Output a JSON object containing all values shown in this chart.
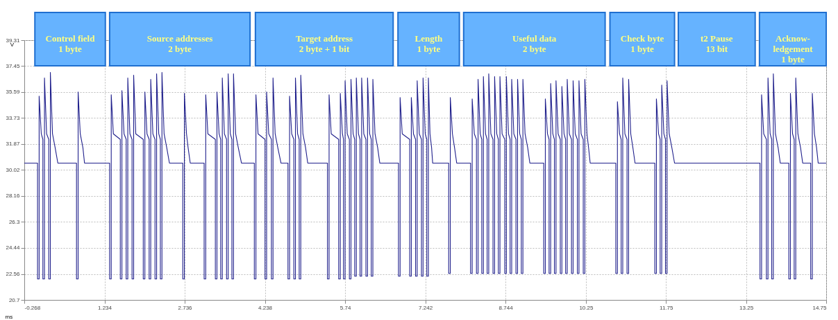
{
  "chart_data": {
    "type": "line",
    "xlabel": "ms",
    "ylabel": "V",
    "xlim": [
      -0.268,
      14.75
    ],
    "xticks": [
      -0.268,
      1.234,
      2.736,
      4.238,
      5.74,
      7.242,
      8.744,
      10.25,
      11.75,
      13.25,
      14.75
    ],
    "ylim": [
      20.7,
      39.31
    ],
    "yticks": [
      20.7,
      22.56,
      24.44,
      26.3,
      28.16,
      30.02,
      31.87,
      33.73,
      35.59,
      37.45,
      39.31
    ],
    "grid": true,
    "line_style": "solid",
    "marker": "none",
    "bands": [
      {
        "axis": "x",
        "from": -0.07,
        "to": 1.25,
        "label": "Control field\n1 byte",
        "color": "#66b3ff"
      },
      {
        "axis": "x",
        "from": 1.33,
        "to": 3.96,
        "label": "Source addresses\n2 byte",
        "color": "#66b3ff"
      },
      {
        "axis": "x",
        "from": 4.06,
        "to": 6.64,
        "label": "Target address\n2 byte + 1 bit",
        "color": "#66b3ff"
      },
      {
        "axis": "x",
        "from": 6.73,
        "to": 7.88,
        "label": "Length\n1 byte",
        "color": "#66b3ff"
      },
      {
        "axis": "x",
        "from": 7.96,
        "to": 10.61,
        "label": "Useful data\n2 byte",
        "color": "#66b3ff"
      },
      {
        "axis": "x",
        "from": 10.7,
        "to": 11.91,
        "label": "Check byte\n1 byte",
        "color": "#66b3ff"
      },
      {
        "axis": "x",
        "from": 11.98,
        "to": 13.42,
        "label": "t2 Pause\n13 bit",
        "color": "#66b3ff"
      },
      {
        "axis": "x",
        "from": 13.5,
        "to": 14.75,
        "label": "Acknow-\nledgement\n1 byte",
        "color": "#66b3ff"
      }
    ],
    "series": [
      {
        "color": "#20208c",
        "x": [
          -0.268,
          -0.02,
          -0.02,
          0.01,
          0.01,
          0.05,
          0.08,
          0.08,
          0.11,
          0.11,
          0.15,
          0.19,
          0.19,
          0.22,
          0.22,
          0.26,
          0.31,
          0.36,
          0.71,
          0.71,
          0.74,
          0.74,
          0.78,
          0.83,
          0.86,
          1.33,
          1.33,
          1.36,
          1.36,
          1.4,
          1.53,
          1.53,
          1.56,
          1.56,
          1.6,
          1.64,
          1.64,
          1.67,
          1.67,
          1.71,
          1.75,
          1.75,
          1.78,
          1.78,
          1.82,
          1.96,
          1.96,
          1.99,
          1.99,
          2.03,
          2.07,
          2.07,
          2.1,
          2.1,
          2.14,
          2.18,
          2.18,
          2.21,
          2.21,
          2.25,
          2.28,
          2.28,
          2.31,
          2.31,
          2.35,
          2.4,
          2.45,
          2.7,
          2.7,
          2.73,
          2.73,
          2.77,
          2.8,
          2.84,
          3.1,
          3.1,
          3.13,
          3.13,
          3.17,
          3.31,
          3.31,
          3.34,
          3.34,
          3.38,
          3.41,
          3.41,
          3.44,
          3.44,
          3.48,
          3.52,
          3.52,
          3.55,
          3.55,
          3.59,
          3.62,
          3.62,
          3.65,
          3.65,
          3.69,
          3.74,
          3.8,
          4.04,
          4.04,
          4.07,
          4.07,
          4.11,
          4.24,
          4.24,
          4.27,
          4.27,
          4.31,
          4.36,
          4.36,
          4.39,
          4.39,
          4.43,
          4.48,
          4.54,
          4.67,
          4.67,
          4.7,
          4.7,
          4.74,
          4.78,
          4.78,
          4.81,
          4.81,
          4.85,
          4.88,
          4.88,
          4.91,
          4.91,
          4.95,
          5.0,
          5.04,
          5.41,
          5.41,
          5.44,
          5.44,
          5.48,
          5.62,
          5.62,
          5.65,
          5.65,
          5.69,
          5.71,
          5.71,
          5.74,
          5.74,
          5.78,
          5.82,
          5.82,
          5.85,
          5.85,
          5.89,
          5.92,
          5.92,
          5.95,
          5.95,
          5.99,
          6.02,
          6.02,
          6.05,
          6.05,
          6.09,
          6.13,
          6.13,
          6.16,
          6.16,
          6.2,
          6.23,
          6.23,
          6.26,
          6.26,
          6.3,
          6.35,
          6.39,
          6.74,
          6.74,
          6.77,
          6.77,
          6.81,
          6.95,
          6.95,
          6.98,
          6.98,
          7.02,
          7.06,
          7.06,
          7.09,
          7.09,
          7.13,
          7.17,
          7.17,
          7.2,
          7.2,
          7.24,
          7.27,
          7.27,
          7.3,
          7.3,
          7.33,
          7.36,
          7.38,
          7.68,
          7.68,
          7.71,
          7.71,
          7.75,
          7.79,
          7.83,
          8.09,
          8.09,
          8.12,
          8.12,
          8.16,
          8.2,
          8.2,
          8.23,
          8.23,
          8.27,
          8.3,
          8.3,
          8.33,
          8.33,
          8.37,
          8.4,
          8.4,
          8.43,
          8.43,
          8.47,
          8.51,
          8.51,
          8.54,
          8.54,
          8.58,
          8.61,
          8.61,
          8.64,
          8.64,
          8.68,
          8.73,
          8.73,
          8.76,
          8.76,
          8.8,
          8.83,
          8.83,
          8.86,
          8.86,
          8.9,
          8.94,
          8.94,
          8.97,
          8.97,
          9.01,
          9.04,
          9.04,
          9.07,
          9.07,
          9.11,
          9.16,
          9.2,
          9.46,
          9.46,
          9.49,
          9.49,
          9.53,
          9.56,
          9.56,
          9.59,
          9.59,
          9.63,
          9.66,
          9.66,
          9.69,
          9.69,
          9.73,
          9.77,
          9.77,
          9.8,
          9.8,
          9.84,
          9.87,
          9.87,
          9.9,
          9.9,
          9.94,
          9.98,
          9.98,
          10.01,
          10.01,
          10.05,
          10.09,
          10.09,
          10.12,
          10.12,
          10.16,
          10.2,
          10.2,
          10.23,
          10.23,
          10.27,
          10.3,
          10.33,
          10.81,
          10.81,
          10.84,
          10.84,
          10.88,
          10.91,
          10.91,
          10.94,
          10.94,
          10.98,
          11.02,
          11.02,
          11.05,
          11.05,
          11.09,
          11.13,
          11.17,
          11.54,
          11.54,
          11.57,
          11.57,
          11.61,
          11.64,
          11.64,
          11.67,
          11.67,
          11.71,
          11.74,
          11.74,
          11.77,
          11.77,
          11.81,
          11.86,
          11.91,
          13.51,
          13.51,
          13.54,
          13.54,
          13.58,
          13.63,
          13.63,
          13.66,
          13.66,
          13.7,
          13.73,
          13.73,
          13.76,
          13.76,
          13.8,
          13.85,
          13.89,
          14.05,
          14.05,
          14.08,
          14.08,
          14.12,
          14.15,
          14.15,
          14.18,
          14.18,
          14.22,
          14.27,
          14.31,
          14.46,
          14.46,
          14.49,
          14.49,
          14.53,
          14.57,
          14.6,
          14.75
        ],
        "values": [
          30.5,
          30.5,
          22.2,
          22.2,
          35.3,
          32.6,
          32.2,
          22.2,
          22.2,
          36.6,
          32.6,
          32.2,
          22.2,
          22.2,
          37.0,
          32.6,
          31.6,
          30.5,
          30.5,
          22.2,
          22.2,
          35.6,
          32.6,
          31.6,
          30.5,
          30.5,
          22.2,
          22.2,
          35.4,
          32.6,
          32.2,
          22.2,
          22.2,
          35.7,
          32.6,
          32.2,
          22.2,
          22.2,
          36.6,
          32.6,
          32.2,
          22.2,
          22.2,
          36.8,
          32.6,
          32.2,
          22.2,
          22.2,
          35.6,
          32.6,
          32.2,
          22.2,
          22.2,
          36.5,
          32.6,
          32.2,
          22.2,
          22.2,
          36.9,
          32.6,
          32.2,
          22.2,
          22.2,
          37.0,
          32.6,
          31.6,
          30.5,
          30.5,
          22.2,
          22.2,
          35.5,
          32.6,
          31.6,
          30.5,
          30.5,
          22.2,
          22.2,
          35.4,
          32.6,
          32.2,
          22.2,
          22.2,
          35.6,
          32.6,
          32.2,
          22.2,
          22.2,
          36.6,
          32.6,
          32.2,
          22.2,
          22.2,
          36.9,
          32.6,
          32.2,
          22.2,
          22.2,
          36.9,
          32.6,
          31.6,
          30.5,
          30.5,
          22.2,
          22.2,
          35.4,
          32.6,
          32.2,
          22.2,
          22.2,
          35.6,
          32.6,
          32.2,
          22.2,
          22.2,
          36.6,
          32.6,
          31.6,
          30.5,
          30.5,
          22.2,
          22.2,
          35.3,
          32.6,
          32.2,
          22.2,
          22.2,
          36.6,
          32.6,
          32.2,
          22.2,
          22.2,
          36.8,
          32.6,
          31.6,
          30.5,
          30.5,
          22.2,
          22.2,
          35.4,
          32.6,
          32.2,
          22.2,
          22.2,
          35.5,
          32.6,
          32.2,
          22.2,
          22.2,
          36.4,
          32.6,
          32.2,
          22.2,
          22.2,
          36.5,
          32.6,
          32.2,
          22.4,
          22.4,
          36.6,
          32.6,
          32.2,
          22.4,
          22.4,
          36.6,
          32.6,
          32.2,
          22.4,
          22.4,
          36.6,
          32.6,
          32.2,
          22.4,
          22.4,
          36.5,
          32.6,
          31.6,
          30.5,
          30.5,
          22.4,
          22.4,
          35.2,
          32.6,
          32.2,
          22.4,
          22.4,
          35.2,
          32.6,
          32.2,
          22.4,
          22.4,
          36.4,
          32.6,
          32.2,
          22.4,
          22.4,
          36.6,
          32.6,
          32.2,
          22.4,
          22.4,
          36.6,
          32.6,
          31.6,
          30.5,
          30.5,
          22.6,
          22.6,
          35.2,
          32.6,
          31.6,
          30.5,
          30.5,
          22.6,
          22.6,
          35.1,
          32.6,
          32.2,
          22.6,
          22.6,
          36.5,
          32.6,
          32.2,
          22.6,
          22.6,
          36.7,
          32.6,
          32.2,
          22.6,
          22.6,
          36.9,
          32.6,
          32.2,
          22.6,
          22.6,
          36.7,
          32.6,
          32.2,
          22.6,
          22.6,
          36.7,
          32.6,
          32.2,
          22.6,
          22.6,
          36.7,
          32.6,
          32.2,
          22.6,
          22.6,
          36.5,
          32.6,
          32.2,
          22.6,
          22.6,
          36.5,
          32.6,
          32.2,
          22.6,
          22.6,
          36.5,
          32.6,
          31.6,
          30.5,
          30.5,
          22.6,
          22.6,
          35.1,
          32.6,
          32.2,
          22.6,
          22.6,
          36.2,
          32.6,
          32.2,
          22.6,
          22.6,
          36.4,
          32.6,
          32.2,
          22.6,
          22.6,
          36.0,
          32.6,
          32.2,
          22.6,
          22.6,
          36.5,
          32.6,
          32.2,
          22.6,
          22.6,
          36.4,
          32.6,
          32.2,
          22.6,
          22.6,
          36.4,
          32.6,
          32.2,
          22.6,
          22.6,
          36.5,
          32.6,
          31.6,
          30.5,
          30.5,
          22.6,
          22.6,
          34.9,
          32.6,
          32.2,
          22.6,
          22.6,
          36.6,
          32.6,
          32.2,
          22.6,
          22.6,
          36.5,
          32.6,
          31.6,
          30.5,
          30.5,
          22.6,
          22.6,
          35.1,
          32.6,
          32.2,
          22.6,
          22.6,
          36.1,
          32.6,
          32.2,
          22.6,
          22.6,
          36.4,
          32.6,
          31.6,
          30.5,
          30.5,
          22.2,
          22.2,
          35.4,
          32.6,
          32.2,
          22.2,
          22.2,
          36.6,
          32.6,
          32.2,
          22.2,
          22.2,
          36.9,
          32.6,
          31.6,
          30.5,
          30.5,
          22.2,
          22.2,
          35.5,
          32.6,
          32.2,
          22.2,
          22.2,
          36.6,
          32.6,
          31.6,
          30.5,
          30.5,
          22.2,
          22.2,
          35.5,
          32.6,
          31.6,
          30.5,
          30.5
        ]
      }
    ]
  }
}
